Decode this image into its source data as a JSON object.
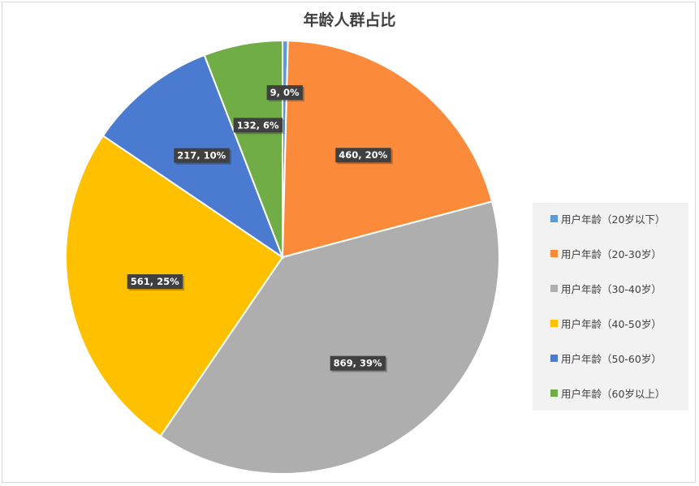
{
  "chart_data": {
    "type": "pie",
    "title": "年龄人群占比",
    "legend_position": "right",
    "slices": [
      {
        "name": "用户年龄（20岁以下）",
        "value": 9,
        "label": "9, 0%",
        "color": "#5b9bd5"
      },
      {
        "name": "用户年龄（20-30岁）",
        "value": 460,
        "label": "460, 20%",
        "color": "#fb8b3b"
      },
      {
        "name": "用户年龄（30-40岁）",
        "value": 869,
        "label": "869, 39%",
        "color": "#aeaeae"
      },
      {
        "name": "用户年龄（40-50岁）",
        "value": 561,
        "label": "561, 25%",
        "color": "#ffc000"
      },
      {
        "name": "用户年龄（50-60岁）",
        "value": 217,
        "label": "217, 10%",
        "color": "#4a7bd1"
      },
      {
        "name": "用户年龄（60岁以上）",
        "value": 132,
        "label": "132, 6%",
        "color": "#70ad47"
      }
    ]
  }
}
